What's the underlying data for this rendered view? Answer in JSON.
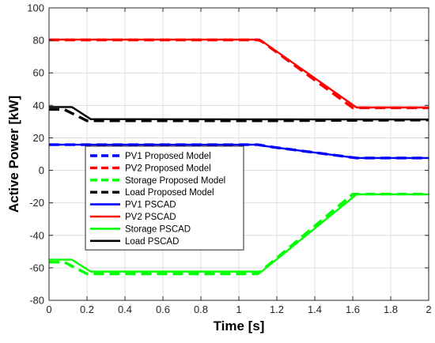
{
  "chart_data": {
    "type": "line",
    "xlabel": "Time [s]",
    "ylabel": "Active Power [kW]",
    "xlim": [
      0,
      2
    ],
    "ylim": [
      -80,
      100
    ],
    "x_ticks": [
      0,
      0.2,
      0.4,
      0.6,
      0.8,
      1,
      1.2,
      1.4,
      1.6,
      1.8,
      2
    ],
    "x_tick_labels": [
      "0",
      "0.2",
      "0.4",
      "0.6",
      "0.8",
      "1",
      "1.2",
      "1.4",
      "1.6",
      "1.8",
      "2"
    ],
    "y_ticks": [
      -80,
      -60,
      -40,
      -20,
      0,
      20,
      40,
      60,
      80,
      100
    ],
    "y_tick_labels": [
      "-80",
      "-60",
      "-40",
      "-20",
      "0",
      "20",
      "40",
      "60",
      "80",
      "100"
    ],
    "grid": true,
    "legend_position": "lower-left",
    "series": [
      {
        "name": "PV1 Proposed Model",
        "color": "#0000ff",
        "style": "dashed",
        "x": [
          0,
          1.1,
          1.15,
          1.2,
          1.62,
          2
        ],
        "y": [
          15.8,
          15.8,
          14.8,
          14.0,
          7.6,
          7.6
        ]
      },
      {
        "name": "PV2 Proposed Model",
        "color": "#ff0000",
        "style": "dashed",
        "x": [
          0,
          1.1,
          1.12,
          1.6,
          2
        ],
        "y": [
          80.3,
          80.3,
          79.5,
          38.5,
          38.5
        ]
      },
      {
        "name": "Storage Proposed Model",
        "color": "#00ff00",
        "style": "dashed",
        "x": [
          0,
          0.08,
          0.2,
          1.1,
          1.6,
          2
        ],
        "y": [
          -56.5,
          -56.5,
          -63.7,
          -63.7,
          -14.6,
          -14.6
        ]
      },
      {
        "name": "Load Proposed Model",
        "color": "#000000",
        "style": "dashed",
        "x": [
          0,
          0.08,
          0.2,
          1.1,
          2
        ],
        "y": [
          37.5,
          37.5,
          30.5,
          30.5,
          31.0
        ]
      },
      {
        "name": "PV1 PSCAD",
        "color": "#0000ff",
        "style": "solid",
        "x": [
          0,
          1.1,
          1.15,
          1.2,
          1.62,
          2
        ],
        "y": [
          15.8,
          15.8,
          14.8,
          14.0,
          7.6,
          7.6
        ]
      },
      {
        "name": "PV2 PSCAD",
        "color": "#ff0000",
        "style": "solid",
        "x": [
          0,
          1.11,
          1.62,
          2
        ],
        "y": [
          80.5,
          80.5,
          38.7,
          38.7
        ]
      },
      {
        "name": "Storage PSCAD",
        "color": "#00ff00",
        "style": "solid",
        "x": [
          0,
          0.12,
          0.22,
          1.12,
          1.62,
          2
        ],
        "y": [
          -55.0,
          -55.0,
          -62.3,
          -62.3,
          -14.8,
          -14.8
        ]
      },
      {
        "name": "Load PSCAD",
        "color": "#000000",
        "style": "solid",
        "x": [
          0,
          0.12,
          0.22,
          2
        ],
        "y": [
          39.0,
          39.0,
          31.5,
          31.3
        ]
      }
    ]
  }
}
